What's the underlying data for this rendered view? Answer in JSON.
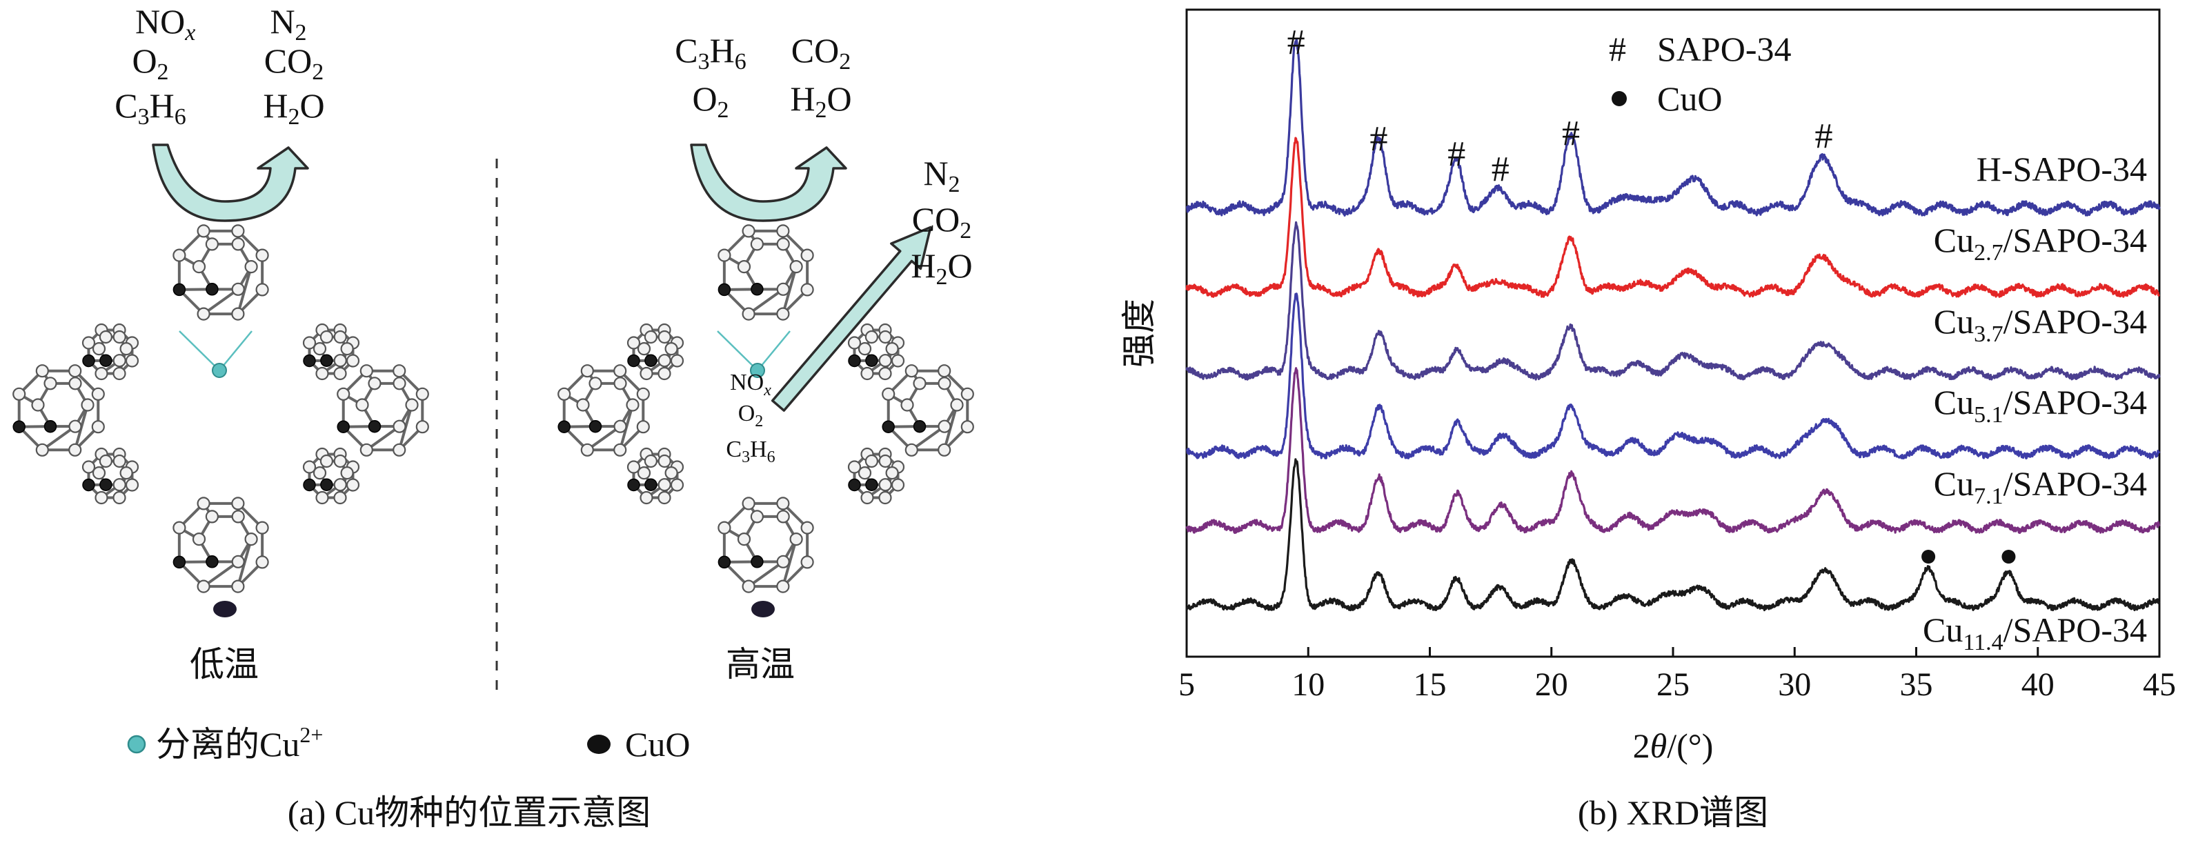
{
  "panel_a": {
    "caption": "(a) Cu物种的位置示意图",
    "low_temp": {
      "label": "低温",
      "reactants": [
        "NOₓ",
        "O₂",
        "C₃H₆"
      ],
      "products": [
        "N₂",
        "CO₂",
        "H₂O"
      ]
    },
    "high_temp": {
      "label": "高温",
      "reactants": [
        "C₃H₆",
        "O₂"
      ],
      "products": [
        "CO₂",
        "H₂O"
      ],
      "inner_reactants": [
        "NOₓ",
        "O₂",
        "C₃H₆"
      ],
      "inner_products": [
        "N₂",
        "CO₂",
        "H₂O"
      ]
    },
    "legend": [
      {
        "label": "分离的Cu²⁺",
        "color": "#5bbfbf"
      },
      {
        "label": "CuO",
        "color": "#111111"
      }
    ],
    "colors": {
      "arrow_fill": "#bfe6e0",
      "arrow_stroke": "#2b2b2b",
      "atom": "#f2f2f2",
      "bond": "#666666"
    }
  },
  "panel_b": {
    "caption": "(b) XRD谱图",
    "legend": [
      {
        "symbol": "#",
        "label": "SAPO-34"
      },
      {
        "symbol": "●",
        "label": "CuO"
      }
    ],
    "chart_data": {
      "type": "line",
      "xlabel": "2θ/(°)",
      "ylabel": "强度",
      "xlim": [
        5,
        45
      ],
      "xticks": [
        5,
        10,
        15,
        20,
        25,
        30,
        35,
        40,
        45
      ],
      "baseline_stack_order": [
        "H-SAPO-34",
        "Cu2.7/SAPO-34",
        "Cu3.7/SAPO-34",
        "Cu5.1/SAPO-34",
        "Cu7.1/SAPO-34",
        "Cu11.4/SAPO-34"
      ],
      "peaks_2theta": [
        9.5,
        12.9,
        16.1,
        17.9,
        20.8,
        23.3,
        25.2,
        26.1,
        31.2
      ],
      "cuo_peaks_2theta": [
        35.5,
        38.8
      ],
      "sapo_markers_2theta": [
        9.5,
        12.9,
        16.1,
        17.9,
        20.8,
        31.2
      ],
      "series": [
        {
          "name": "H-SAPO-34",
          "label_main": "H-SAPO-34",
          "label_sub": "",
          "label_tail": "",
          "color": "#3a3a9e",
          "peak_heights": [
            1.0,
            0.42,
            0.28,
            0.12,
            0.4,
            0.09,
            0.1,
            0.12,
            0.28
          ],
          "cuo_heights": [
            0,
            0
          ]
        },
        {
          "name": "Cu2.7/SAPO-34",
          "label_main": "Cu",
          "label_sub": "2.7",
          "label_tail": "/SAPO-34",
          "color": "#e32626",
          "peak_heights": [
            1.0,
            0.28,
            0.18,
            0.08,
            0.32,
            0.05,
            0.07,
            0.08,
            0.22
          ],
          "cuo_heights": [
            0,
            0
          ]
        },
        {
          "name": "Cu3.7/SAPO-34",
          "label_main": "Cu",
          "label_sub": "3.7",
          "label_tail": "/SAPO-34",
          "color": "#4b3f8f",
          "peak_heights": [
            1.0,
            0.28,
            0.18,
            0.1,
            0.32,
            0.05,
            0.07,
            0.08,
            0.22
          ],
          "cuo_heights": [
            0,
            0
          ]
        },
        {
          "name": "Cu5.1/SAPO-34",
          "label_main": "Cu",
          "label_sub": "5.1",
          "label_tail": "/SAPO-34",
          "color": "#3d3da8",
          "peak_heights": [
            1.0,
            0.28,
            0.2,
            0.1,
            0.32,
            0.05,
            0.07,
            0.08,
            0.22
          ],
          "cuo_heights": [
            0,
            0
          ]
        },
        {
          "name": "Cu7.1/SAPO-34",
          "label_main": "Cu",
          "label_sub": "7.1",
          "label_tail": "/SAPO-34",
          "color": "#7a2f7f",
          "peak_heights": [
            1.0,
            0.3,
            0.2,
            0.12,
            0.36,
            0.05,
            0.07,
            0.08,
            0.22
          ],
          "cuo_heights": [
            0,
            0
          ]
        },
        {
          "name": "Cu11.4/SAPO-34",
          "label_main": "Cu",
          "label_sub": "11.4",
          "label_tail": "/SAPO-34",
          "color": "#1a1a1a",
          "peak_heights": [
            1.0,
            0.2,
            0.16,
            0.1,
            0.3,
            0.05,
            0.08,
            0.08,
            0.22
          ],
          "cuo_heights": [
            0.28,
            0.25
          ]
        }
      ]
    }
  }
}
